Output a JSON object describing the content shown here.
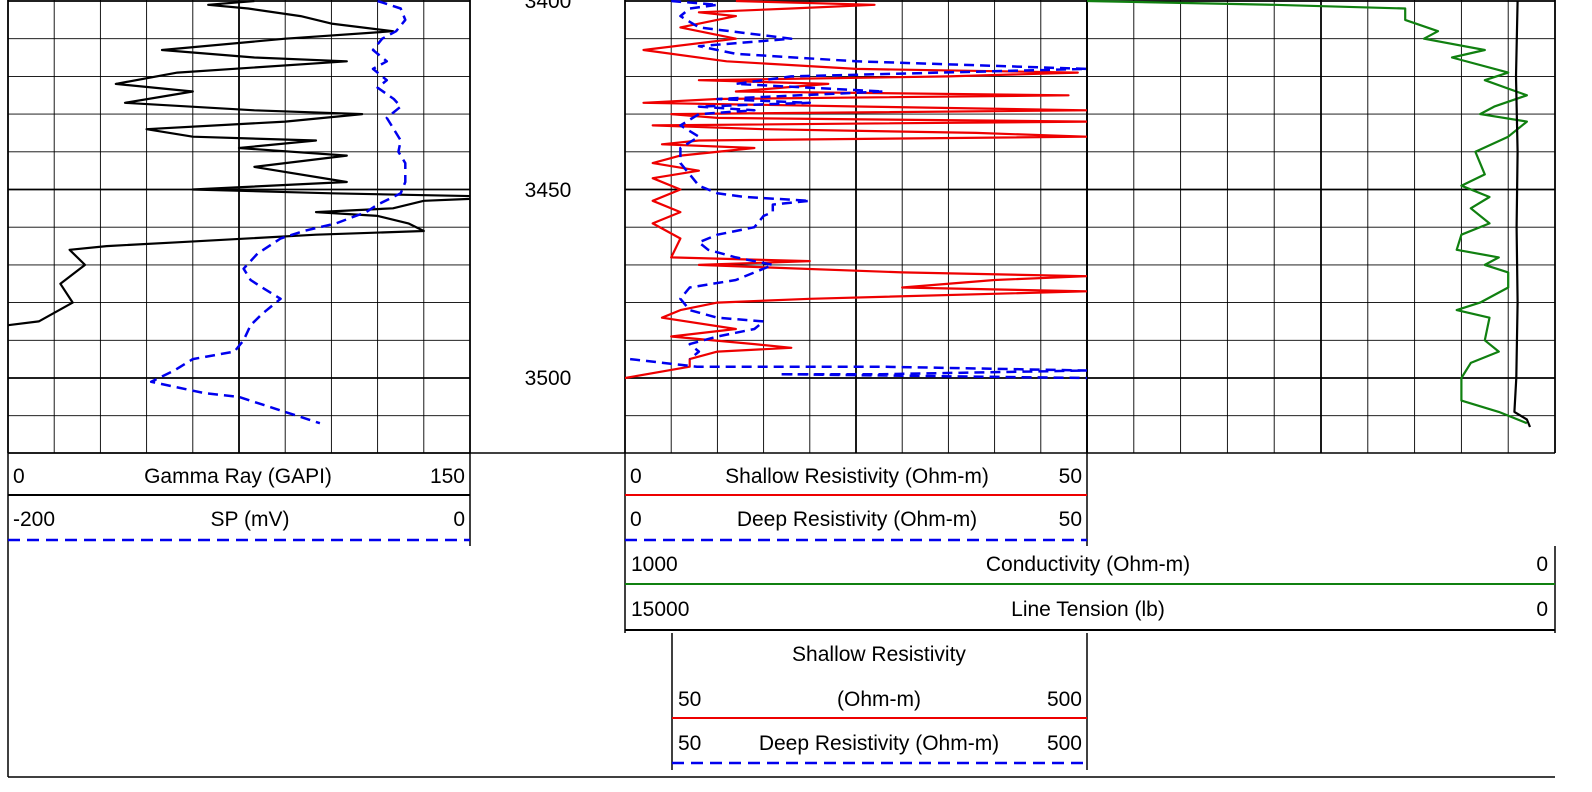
{
  "colors": {
    "gamma_ray": "#000000",
    "sp": "#0000ee",
    "shallow_resistivity": "#ee0000",
    "deep_resistivity": "#0000ee",
    "conductivity": "#108010",
    "line_tension": "#000000",
    "grid": "#000000"
  },
  "chart_data": {
    "type": "line",
    "depth_axis": {
      "ticks": [
        "3400",
        "3450",
        "3500"
      ],
      "visible_range": [
        3400,
        3520
      ]
    },
    "track1": {
      "curves": [
        {
          "name": "Gamma Ray (GAPI)",
          "left": "0",
          "right": "150",
          "xlim": [
            0,
            150
          ],
          "style": "solid",
          "points": [
            [
              80,
              3400
            ],
            [
              65,
              3401
            ],
            [
              78,
              3402
            ],
            [
              95,
              3404
            ],
            [
              105,
              3406
            ],
            [
              125,
              3408
            ],
            [
              90,
              3410
            ],
            [
              50,
              3413
            ],
            [
              80,
              3415
            ],
            [
              110,
              3416
            ],
            [
              55,
              3419
            ],
            [
              35,
              3422
            ],
            [
              60,
              3424
            ],
            [
              38,
              3427
            ],
            [
              80,
              3429
            ],
            [
              115,
              3430
            ],
            [
              90,
              3432
            ],
            [
              45,
              3434
            ],
            [
              60,
              3436
            ],
            [
              100,
              3437
            ],
            [
              75,
              3439
            ],
            [
              110,
              3441
            ],
            [
              80,
              3444
            ],
            [
              110,
              3448
            ],
            [
              60,
              3450
            ],
            [
              105,
              3451
            ],
            [
              165,
              3452
            ],
            [
              135,
              3453
            ],
            [
              125,
              3455
            ],
            [
              100,
              3456
            ],
            [
              120,
              3457
            ],
            [
              130,
              3459
            ],
            [
              135,
              3461
            ],
            [
              100,
              3462
            ],
            [
              55,
              3464
            ],
            [
              32,
              3465
            ],
            [
              20,
              3466
            ],
            [
              25,
              3470
            ],
            [
              17,
              3475
            ],
            [
              21,
              3480
            ],
            [
              10,
              3485
            ],
            [
              0,
              3486
            ]
          ]
        },
        {
          "name": "SP (mV)",
          "left": "-200",
          "right": "0",
          "xlim": [
            -200,
            0
          ],
          "style": "dashed",
          "points": [
            [
              -40,
              3400
            ],
            [
              -30,
              3402
            ],
            [
              -28,
              3405
            ],
            [
              -32,
              3408
            ],
            [
              -38,
              3410
            ],
            [
              -42,
              3413
            ],
            [
              -36,
              3416
            ],
            [
              -42,
              3418
            ],
            [
              -36,
              3421
            ],
            [
              -40,
              3423
            ],
            [
              -33,
              3426
            ],
            [
              -30,
              3428
            ],
            [
              -36,
              3431
            ],
            [
              -33,
              3434
            ],
            [
              -30,
              3437
            ],
            [
              -31,
              3440
            ],
            [
              -28,
              3443
            ],
            [
              -28,
              3448
            ],
            [
              -30,
              3451
            ],
            [
              -40,
              3454
            ],
            [
              -45,
              3456
            ],
            [
              -58,
              3459
            ],
            [
              -72,
              3461
            ],
            [
              -82,
              3463
            ],
            [
              -92,
              3467
            ],
            [
              -98,
              3471
            ],
            [
              -95,
              3474
            ],
            [
              -90,
              3476
            ],
            [
              -82,
              3479
            ],
            [
              -86,
              3481
            ],
            [
              -90,
              3483
            ],
            [
              -95,
              3486
            ],
            [
              -98,
              3490
            ],
            [
              -102,
              3493
            ],
            [
              -120,
              3495
            ],
            [
              -128,
              3498
            ],
            [
              -138,
              3501
            ],
            [
              -115,
              3504
            ],
            [
              -100,
              3505
            ],
            [
              -85,
              3508
            ],
            [
              -75,
              3510
            ],
            [
              -65,
              3512
            ]
          ]
        }
      ]
    },
    "track2": {
      "curves": [
        {
          "name": "Shallow Resistivity (Ohm-m)",
          "left": "0",
          "right": "50",
          "xlim": [
            0,
            50
          ],
          "style": "solid",
          "points": [
            [
              12,
              3400
            ],
            [
              27,
              3401
            ],
            [
              18,
              3402
            ],
            [
              8,
              3403
            ],
            [
              12,
              3404
            ],
            [
              6,
              3407
            ],
            [
              12,
              3410
            ],
            [
              2,
              3413
            ],
            [
              11,
              3416
            ],
            [
              25,
              3418
            ],
            [
              49,
              3419
            ],
            [
              35,
              3420
            ],
            [
              8,
              3421
            ],
            [
              22,
              3422
            ],
            [
              12,
              3424
            ],
            [
              48,
              3425
            ],
            [
              10,
              3426
            ],
            [
              2,
              3427
            ],
            [
              26,
              3428
            ],
            [
              50,
              3429
            ],
            [
              5,
              3430
            ],
            [
              10,
              3431
            ],
            [
              50,
              3432
            ],
            [
              3,
              3433
            ],
            [
              15,
              3434
            ],
            [
              38,
              3435
            ],
            [
              50,
              3436
            ],
            [
              8,
              3437
            ],
            [
              4,
              3438
            ],
            [
              14,
              3439
            ],
            [
              6,
              3441
            ],
            [
              3,
              3443
            ],
            [
              8,
              3445
            ],
            [
              3,
              3447
            ],
            [
              6,
              3450
            ],
            [
              3,
              3453
            ],
            [
              6,
              3456
            ],
            [
              3,
              3459
            ],
            [
              6,
              3463
            ],
            [
              5,
              3468
            ],
            [
              20,
              3469
            ],
            [
              8,
              3470
            ],
            [
              30,
              3472
            ],
            [
              50,
              3473
            ],
            [
              40,
              3474
            ],
            [
              30,
              3476
            ],
            [
              50,
              3477
            ],
            [
              20,
              3479
            ],
            [
              10,
              3480
            ],
            [
              6,
              3482
            ],
            [
              4,
              3484
            ],
            [
              12,
              3487
            ],
            [
              5,
              3489
            ],
            [
              14,
              3491
            ],
            [
              18,
              3492
            ],
            [
              10,
              3493
            ],
            [
              7,
              3495
            ],
            [
              7,
              3497
            ],
            [
              0,
              3500
            ]
          ]
        },
        {
          "name": "Deep Resistivity (Ohm-m)",
          "left": "0",
          "right": "50",
          "xlim": [
            0,
            50
          ],
          "style": "dashed",
          "points": [
            [
              5,
              3400
            ],
            [
              10,
              3401
            ],
            [
              7,
              3402
            ],
            [
              6,
              3404
            ],
            [
              8,
              3407
            ],
            [
              18,
              3410
            ],
            [
              8,
              3412
            ],
            [
              12,
              3414
            ],
            [
              25,
              3416
            ],
            [
              50,
              3418
            ],
            [
              18,
              3420
            ],
            [
              12,
              3422
            ],
            [
              28,
              3424
            ],
            [
              10,
              3426
            ],
            [
              20,
              3427
            ],
            [
              8,
              3428
            ],
            [
              14,
              3429
            ],
            [
              8,
              3430
            ],
            [
              6,
              3433
            ],
            [
              8,
              3436
            ],
            [
              6,
              3439
            ],
            [
              6,
              3443
            ],
            [
              7,
              3446
            ],
            [
              8,
              3449
            ],
            [
              10,
              3451
            ],
            [
              13,
              3452
            ],
            [
              20,
              3453
            ],
            [
              16,
              3454
            ],
            [
              16,
              3456
            ],
            [
              15,
              3457
            ],
            [
              14,
              3460
            ],
            [
              10,
              3462
            ],
            [
              8,
              3464
            ],
            [
              9,
              3466
            ],
            [
              12,
              3468
            ],
            [
              16,
              3470
            ],
            [
              14,
              3472
            ],
            [
              12,
              3474
            ],
            [
              7,
              3476
            ],
            [
              6,
              3479
            ],
            [
              7,
              3482
            ],
            [
              10,
              3484
            ],
            [
              15,
              3485
            ],
            [
              14,
              3487
            ],
            [
              10,
              3489
            ],
            [
              7,
              3491
            ],
            [
              8,
              3493
            ],
            [
              7,
              3495
            ]
          ]
        },
        {
          "name": "Shallow Resistivity (Ohm-m)",
          "left": "50",
          "right": "500",
          "xlim": [
            50,
            500
          ],
          "style": "solid",
          "backup": true,
          "points": []
        },
        {
          "name": "Deep Resistivity (Ohm-m)",
          "left": "50",
          "right": "500",
          "xlim": [
            50,
            500
          ],
          "style": "dashed",
          "backup": true,
          "points": [
            [
              55,
              3495
            ],
            [
              120,
              3497
            ],
            [
              300,
              3497
            ],
            [
              500,
              3498
            ],
            [
              300,
              3499
            ],
            [
              200,
              3499
            ],
            [
              500,
              3500
            ]
          ]
        }
      ]
    },
    "track3": {
      "curves": [
        {
          "name": "Conductivity (Ohm-m)",
          "left": "1000",
          "right": "0",
          "xlim": [
            1000,
            0
          ],
          "style": "solid",
          "points": [
            [
              1000,
              3400
            ],
            [
              600,
              3401
            ],
            [
              320,
              3402
            ],
            [
              320,
              3405
            ],
            [
              250,
              3408
            ],
            [
              280,
              3410
            ],
            [
              150,
              3413
            ],
            [
              220,
              3415
            ],
            [
              100,
              3419
            ],
            [
              150,
              3421
            ],
            [
              60,
              3425
            ],
            [
              130,
              3428
            ],
            [
              160,
              3430
            ],
            [
              60,
              3432
            ],
            [
              100,
              3436
            ],
            [
              170,
              3440
            ],
            [
              150,
              3446
            ],
            [
              200,
              3449
            ],
            [
              140,
              3452
            ],
            [
              180,
              3455
            ],
            [
              140,
              3459
            ],
            [
              200,
              3462
            ],
            [
              210,
              3466
            ],
            [
              120,
              3468
            ],
            [
              150,
              3470
            ],
            [
              100,
              3472
            ],
            [
              100,
              3476
            ],
            [
              160,
              3480
            ],
            [
              210,
              3482
            ],
            [
              140,
              3484
            ],
            [
              150,
              3490
            ],
            [
              120,
              3493
            ],
            [
              180,
              3496
            ],
            [
              200,
              3500
            ],
            [
              200,
              3506
            ],
            [
              120,
              3509
            ],
            [
              60,
              3512
            ]
          ]
        },
        {
          "name": "Line Tension (lb)",
          "left": "15000",
          "right": "0",
          "xlim": [
            15000,
            0
          ],
          "style": "solid",
          "points": [
            [
              1200,
              3400
            ],
            [
              1250,
              3420
            ],
            [
              1200,
              3440
            ],
            [
              1230,
              3460
            ],
            [
              1200,
              3480
            ],
            [
              1240,
              3500
            ],
            [
              1300,
              3509
            ],
            [
              900,
              3511
            ],
            [
              800,
              3513
            ]
          ]
        }
      ]
    },
    "header": {
      "gr_left": "0",
      "gr_label": "Gamma Ray (GAPI)",
      "gr_right": "150",
      "sp_left": "-200",
      "sp_label": "SP (mV)",
      "sp_right": "0",
      "shr_left": "0",
      "shr_label": "Shallow Resistivity (Ohm-m)",
      "shr_right": "50",
      "dr_left": "0",
      "dr_label": "Deep Resistivity (Ohm-m)",
      "dr_right": "50",
      "cond_left": "1000",
      "cond_label": "Conductivity (Ohm-m)",
      "cond_right": "0",
      "lt_left": "15000",
      "lt_label": "Line Tension (lb)",
      "lt_right": "0",
      "shr2_title": "Shallow Resistivity",
      "shr2_left": "50",
      "shr2_label": "(Ohm-m)",
      "shr2_right": "500",
      "dr2_left": "50",
      "dr2_label": "Deep Resistivity (Ohm-m)",
      "dr2_right": "500"
    }
  }
}
